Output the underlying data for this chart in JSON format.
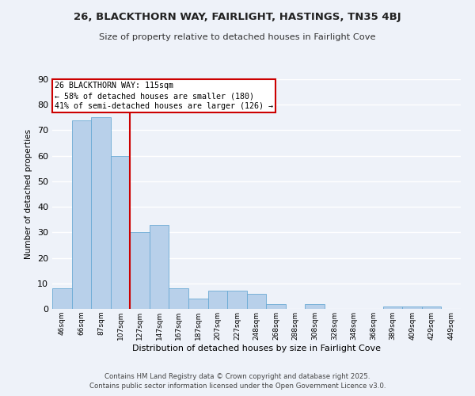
{
  "title1": "26, BLACKTHORN WAY, FAIRLIGHT, HASTINGS, TN35 4BJ",
  "title2": "Size of property relative to detached houses in Fairlight Cove",
  "xlabel": "Distribution of detached houses by size in Fairlight Cove",
  "ylabel": "Number of detached properties",
  "categories": [
    "46sqm",
    "66sqm",
    "87sqm",
    "107sqm",
    "127sqm",
    "147sqm",
    "167sqm",
    "187sqm",
    "207sqm",
    "227sqm",
    "248sqm",
    "268sqm",
    "288sqm",
    "308sqm",
    "328sqm",
    "348sqm",
    "368sqm",
    "389sqm",
    "409sqm",
    "429sqm",
    "449sqm"
  ],
  "values": [
    8,
    74,
    75,
    60,
    30,
    33,
    8,
    4,
    7,
    7,
    6,
    2,
    0,
    2,
    0,
    0,
    0,
    1,
    1,
    1,
    0
  ],
  "bar_color": "#b8d0ea",
  "bar_edge_color": "#6aaad4",
  "vline_x": 3.5,
  "vline_color": "#cc0000",
  "annotation_text": "26 BLACKTHORN WAY: 115sqm\n← 58% of detached houses are smaller (180)\n41% of semi-detached houses are larger (126) →",
  "annotation_box_color": "#ffffff",
  "annotation_box_edge": "#cc0000",
  "ylim": [
    0,
    90
  ],
  "yticks": [
    0,
    10,
    20,
    30,
    40,
    50,
    60,
    70,
    80,
    90
  ],
  "footer1": "Contains HM Land Registry data © Crown copyright and database right 2025.",
  "footer2": "Contains public sector information licensed under the Open Government Licence v3.0.",
  "bg_color": "#eef2f9",
  "grid_color": "#ffffff"
}
